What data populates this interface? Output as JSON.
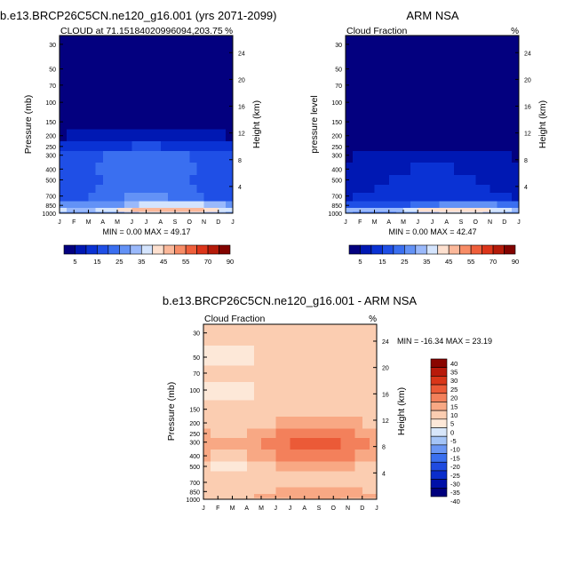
{
  "chart_data": [
    {
      "type": "heatmap",
      "title": "b.e13.BRCP26C5CN.ne120_g16.001 (yrs 2071-2099)",
      "subtitle_left": "CLOUD at 71.15184020996094,203.75",
      "subtitle_right": "%",
      "ylabel": "Pressure (mb)",
      "ylabel_right": "Height (km)",
      "x_ticks": [
        "J",
        "F",
        "M",
        "A",
        "M",
        "J",
        "J",
        "A",
        "S",
        "O",
        "N",
        "D",
        "J"
      ],
      "y_ticks": [
        "30",
        "50",
        "70",
        "100",
        "150",
        "200",
        "250",
        "300",
        "400",
        "500",
        "700",
        "850",
        "1000"
      ],
      "y_right_ticks": [
        "24",
        "20",
        "16",
        "12",
        "8",
        "4"
      ],
      "stats": "MIN =   0.00 MAX =  49.17",
      "min": 0.0,
      "max": 49.17,
      "profile": [
        {
          "p": 1000,
          "v": 32
        },
        {
          "p": 925,
          "v": 42
        },
        {
          "p": 850,
          "v": 32
        },
        {
          "p": 700,
          "v": 22
        },
        {
          "p": 600,
          "v": 21
        },
        {
          "p": 500,
          "v": 20
        },
        {
          "p": 400,
          "v": 21
        },
        {
          "p": 300,
          "v": 20
        },
        {
          "p": 250,
          "v": 13
        },
        {
          "p": 200,
          "v": 6
        },
        {
          "p": 150,
          "v": 1
        },
        {
          "p": 100,
          "v": 0
        },
        {
          "p": 70,
          "v": 0
        },
        {
          "p": 50,
          "v": 0
        },
        {
          "p": 30,
          "v": 0
        }
      ],
      "colorbar_labels": [
        "5",
        "15",
        "25",
        "35",
        "45",
        "55",
        "70",
        "90"
      ]
    },
    {
      "type": "heatmap",
      "title": "ARM NSA",
      "subtitle_left": "Cloud Fraction",
      "subtitle_right": "%",
      "ylabel": "pressure level",
      "ylabel_right": "Height (km)",
      "x_ticks": [
        "J",
        "F",
        "M",
        "A",
        "M",
        "J",
        "J",
        "A",
        "S",
        "O",
        "N",
        "D",
        "J"
      ],
      "y_ticks": [
        "30",
        "50",
        "70",
        "100",
        "150",
        "200",
        "250",
        "300",
        "400",
        "500",
        "700",
        "850",
        "1000"
      ],
      "y_right_ticks": [
        "24",
        "20",
        "16",
        "12",
        "8",
        "4"
      ],
      "stats": "MIN =   0.00 MAX =  42.47",
      "min": 0.0,
      "max": 42.47,
      "profile": [
        {
          "p": 1000,
          "v": 30
        },
        {
          "p": 925,
          "v": 38
        },
        {
          "p": 850,
          "v": 22
        },
        {
          "p": 700,
          "v": 12
        },
        {
          "p": 600,
          "v": 11
        },
        {
          "p": 500,
          "v": 10
        },
        {
          "p": 400,
          "v": 9
        },
        {
          "p": 300,
          "v": 6
        },
        {
          "p": 250,
          "v": 2
        },
        {
          "p": 200,
          "v": 0
        },
        {
          "p": 150,
          "v": 0
        },
        {
          "p": 100,
          "v": 0
        },
        {
          "p": 70,
          "v": 0
        },
        {
          "p": 50,
          "v": 0
        },
        {
          "p": 30,
          "v": 0
        }
      ],
      "colorbar_labels": [
        "5",
        "15",
        "25",
        "35",
        "45",
        "55",
        "70",
        "90"
      ]
    },
    {
      "type": "heatmap",
      "title": "b.e13.BRCP26C5CN.ne120_g16.001 - ARM NSA",
      "subtitle_left": "Cloud Fraction",
      "subtitle_right": "%",
      "ylabel": "Pressure (mb)",
      "ylabel_right": "Height (km)",
      "x_ticks": [
        "J",
        "F",
        "M",
        "A",
        "M",
        "J",
        "J",
        "A",
        "S",
        "O",
        "N",
        "D",
        "J"
      ],
      "y_ticks": [
        "30",
        "50",
        "70",
        "100",
        "150",
        "200",
        "250",
        "300",
        "400",
        "500",
        "700",
        "850",
        "1000"
      ],
      "y_right_ticks": [
        "24",
        "20",
        "16",
        "12",
        "8",
        "4"
      ],
      "stats": "MIN = -16.34 MAX =  23.19",
      "min": -16.34,
      "max": 23.19,
      "profile": [
        {
          "p": 1000,
          "v": 4
        },
        {
          "p": 925,
          "v": 6
        },
        {
          "p": 850,
          "v": 5
        },
        {
          "p": 700,
          "v": 3
        },
        {
          "p": 600,
          "v": 2
        },
        {
          "p": 500,
          "v": 4
        },
        {
          "p": 400,
          "v": 9
        },
        {
          "p": 300,
          "v": 12
        },
        {
          "p": 250,
          "v": 9
        },
        {
          "p": 200,
          "v": 5
        },
        {
          "p": 150,
          "v": 3
        },
        {
          "p": 100,
          "v": 1
        },
        {
          "p": 70,
          "v": 2
        },
        {
          "p": 50,
          "v": 1
        },
        {
          "p": 30,
          "v": 3
        }
      ],
      "colorbar_labels": [
        "40",
        "35",
        "30",
        "25",
        "20",
        "15",
        "10",
        "5",
        "0",
        "-5",
        "-10",
        "-15",
        "-20",
        "-25",
        "-30",
        "-35",
        "-40"
      ]
    }
  ],
  "colors": {
    "abs_scale": [
      "#03007f",
      "#0018b3",
      "#0a32d4",
      "#1f4fe6",
      "#3a6ff0",
      "#6392f6",
      "#9ab9fb",
      "#d4e4fd",
      "#fde0cf",
      "#fbb89a",
      "#f78c66",
      "#ef5f3b",
      "#dc351a",
      "#b51b0a",
      "#820300"
    ],
    "diff_scale": [
      "#00007d",
      "#0010a8",
      "#0a2dcc",
      "#1f4be0",
      "#3a6fef",
      "#6a96f4",
      "#a4c4f7",
      "#d7e6fa",
      "#fde8d8",
      "#fbcdb1",
      "#f8a884",
      "#f3805b",
      "#eb5a37",
      "#d93619",
      "#b81a0b",
      "#8a0500"
    ]
  }
}
